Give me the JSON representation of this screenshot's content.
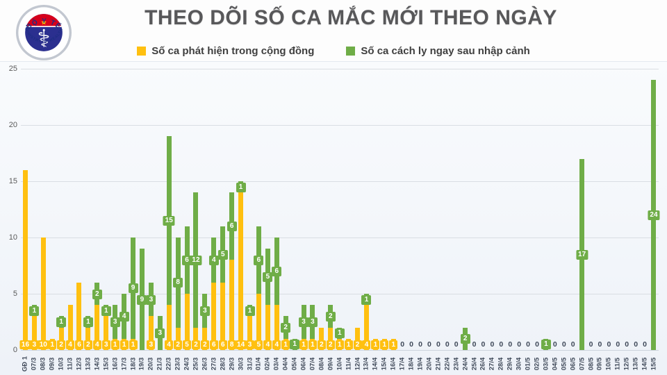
{
  "header": {
    "title": "THEO DÕI SỐ CA MẮC MỚI THEO NGÀY",
    "logo": {
      "top_text": "BỘ Y TẾ",
      "bottom_text": "MINISTRY OF HEALTH",
      "star": "★",
      "caduceus": "⚕"
    },
    "legend": [
      {
        "label": "Số ca phát hiện trong cộng đồng",
        "color": "#FFC010"
      },
      {
        "label": "Số ca cách ly ngay sau nhập cảnh",
        "color": "#6FAD47"
      }
    ]
  },
  "chart_data": {
    "type": "bar",
    "stacked": true,
    "title": "THEO DÕI SỐ CA MẮC MỚI THEO NGÀY",
    "xlabel": "",
    "ylabel": "",
    "ylim": [
      0,
      25
    ],
    "yticks": [
      0,
      5,
      10,
      15,
      20,
      25
    ],
    "grid": "horizontal",
    "legend_position": "top",
    "label_style": "white numbers in series-colored boxes; zero days shown as plain '0' text at baseline",
    "categories": [
      "GĐ 1",
      "07/3",
      "08/3",
      "09/3",
      "10/3",
      "11/3",
      "12/3",
      "13/3",
      "14/3",
      "15/3",
      "16/3",
      "17/3",
      "18/3",
      "19/3",
      "20/3",
      "21/3",
      "22/3",
      "23/3",
      "24/3",
      "25/3",
      "26/3",
      "27/3",
      "28/3",
      "29/3",
      "30/3",
      "31/3",
      "01/4",
      "02/4",
      "03/4",
      "04/4",
      "05/4",
      "06/4",
      "07/4",
      "08/4",
      "09/4",
      "10/4",
      "11/4",
      "12/4",
      "13/4",
      "14/4",
      "15/4",
      "16/4",
      "17/4",
      "18/4",
      "19/4",
      "20/4",
      "21/4",
      "22/4",
      "23/4",
      "24/4",
      "25/4",
      "26/4",
      "27/4",
      "28/4",
      "29/4",
      "30/4",
      "01/5",
      "02/5",
      "03/5",
      "04/5",
      "05/5",
      "06/5",
      "07/5",
      "08/5",
      "09/5",
      "10/5",
      "11/5",
      "12/5",
      "13/5",
      "14/5",
      "15/5"
    ],
    "series": [
      {
        "name": "Số ca phát hiện trong cộng đồng",
        "color": "#FFC010",
        "values": [
          16,
          3,
          10,
          1,
          2,
          4,
          6,
          2,
          4,
          3,
          1,
          1,
          1,
          0,
          3,
          0,
          4,
          2,
          5,
          2,
          2,
          6,
          6,
          8,
          14,
          3,
          5,
          4,
          4,
          1,
          0,
          1,
          1,
          2,
          2,
          1,
          1,
          2,
          4,
          1,
          1,
          1,
          0,
          0,
          0,
          0,
          0,
          0,
          0,
          0,
          0,
          0,
          0,
          0,
          0,
          0,
          0,
          0,
          0,
          0,
          0,
          0,
          0,
          0,
          0,
          0,
          0,
          0,
          0,
          0,
          0
        ]
      },
      {
        "name": "Số ca cách ly ngay sau nhập cảnh",
        "color": "#6FAD47",
        "values": [
          0,
          1,
          0,
          0,
          1,
          0,
          0,
          1,
          2,
          1,
          3,
          4,
          9,
          9,
          3,
          3,
          15,
          8,
          6,
          12,
          3,
          4,
          5,
          6,
          1,
          1,
          6,
          5,
          6,
          2,
          1,
          3,
          3,
          0,
          2,
          1,
          0,
          0,
          1,
          0,
          0,
          0,
          0,
          0,
          0,
          0,
          0,
          0,
          0,
          2,
          0,
          0,
          0,
          0,
          0,
          0,
          0,
          0,
          1,
          0,
          0,
          0,
          17,
          0,
          0,
          0,
          0,
          0,
          0,
          0,
          24
        ]
      }
    ]
  }
}
